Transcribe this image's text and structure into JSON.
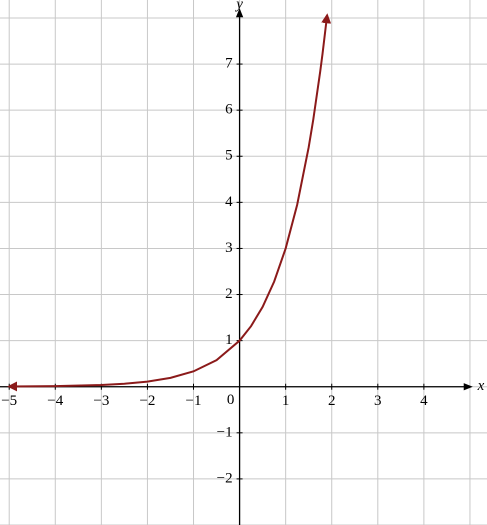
{
  "chart_data": {
    "type": "line",
    "x_label": "x",
    "y_label": "y",
    "origin_label": "0",
    "x": [
      -5,
      -4,
      -3,
      -2.5,
      -2,
      -1.5,
      -1,
      -0.5,
      0,
      0.25,
      0.5,
      0.75,
      1,
      1.25,
      1.5,
      1.6,
      1.75,
      1.8,
      1.9
    ],
    "series": [
      {
        "color": "#8b1a1a",
        "values": [
          0.004,
          0.012,
          0.037,
          0.064,
          0.111,
          0.192,
          0.333,
          0.577,
          1,
          1.316,
          1.732,
          2.28,
          3,
          3.948,
          5.196,
          5.8,
          6.839,
          7.22,
          8.06
        ]
      }
    ],
    "xlim": [
      -5.2,
      5.37
    ],
    "ylim": [
      -3,
      8.39
    ],
    "xticks": [
      {
        "value": -5,
        "label": "−5"
      },
      {
        "value": -4,
        "label": "−4"
      },
      {
        "value": -3,
        "label": "−3"
      },
      {
        "value": -2,
        "label": "−2"
      },
      {
        "value": -1,
        "label": "−1"
      },
      1,
      2,
      3,
      4
    ],
    "yticks": [
      {
        "value": -2,
        "label": "−2"
      },
      {
        "value": -1,
        "label": "−1"
      },
      1,
      2,
      3,
      4,
      5,
      6,
      7
    ],
    "grid": true
  }
}
